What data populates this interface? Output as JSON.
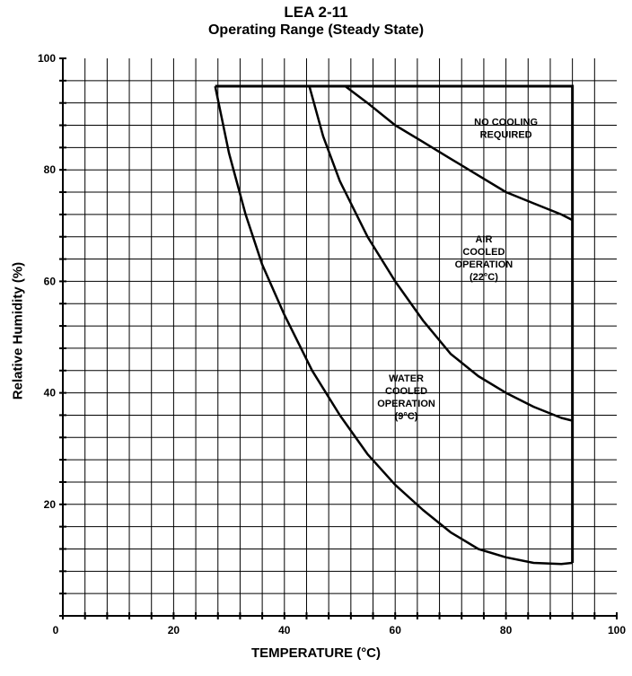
{
  "chart_data": {
    "type": "line",
    "title": "LEA 2-11",
    "subtitle": "Operating Range (Steady State)",
    "xlabel": "TEMPERATURE (°C)",
    "ylabel": "Relative Humidity (%)",
    "xlim": [
      0,
      100
    ],
    "ylim": [
      0,
      100
    ],
    "xticks": [
      "0",
      "20",
      "40",
      "60",
      "80",
      "100"
    ],
    "yticks": [
      "20",
      "40",
      "60",
      "80",
      "100"
    ],
    "grid": true,
    "boundary": {
      "top_rh": 95,
      "right_temp": 92,
      "x": [
        27.5,
        92,
        92
      ],
      "y": [
        95,
        95,
        9.5
      ]
    },
    "series": [
      {
        "x": [
          27.5,
          30,
          33,
          36,
          40,
          45,
          50,
          55,
          60,
          65,
          70,
          75,
          80,
          85,
          90,
          92
        ],
        "y": [
          95,
          83,
          72,
          63,
          54,
          44,
          36,
          29,
          23.5,
          19,
          15,
          12,
          10.5,
          9.5,
          9.3,
          9.5
        ]
      },
      {
        "x": [
          44.5,
          47,
          50,
          55,
          60,
          65,
          70,
          75,
          80,
          85,
          90,
          92
        ],
        "y": [
          95,
          86,
          78,
          68,
          60,
          53,
          47,
          43,
          40,
          37.5,
          35.5,
          35
        ]
      },
      {
        "x": [
          51,
          55,
          60,
          65,
          70,
          75,
          80,
          85,
          90,
          92
        ],
        "y": [
          95,
          92,
          88,
          85,
          82,
          79,
          76,
          74,
          72,
          71
        ]
      }
    ],
    "annotations": [
      {
        "lines": [
          "NO COOLING",
          "REQUIRED"
        ],
        "x": 80,
        "y": 88
      },
      {
        "lines": [
          "AIR",
          "COOLED",
          "OPERATION",
          "(22°C)"
        ],
        "x": 76,
        "y": 67
      },
      {
        "lines": [
          "WATER",
          "COOLED",
          "OPERATION",
          "(9°C)"
        ],
        "x": 62,
        "y": 42
      }
    ]
  }
}
